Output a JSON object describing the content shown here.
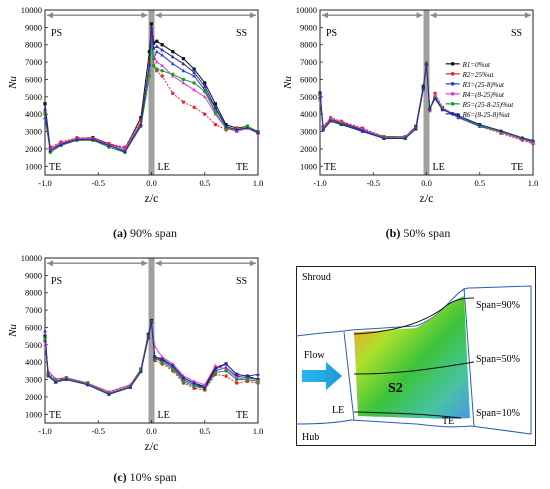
{
  "colors": {
    "R1": "#111111",
    "R2": "#e8232a",
    "R3": "#2b3de0",
    "R4": "#e23ad6",
    "R5": "#1c9a2a",
    "R6": "#2a2a9a",
    "arrow": "#888888",
    "le_band": "#a0a0a0"
  },
  "chart_data": [
    {
      "id": "a",
      "type": "line",
      "caption_tag": "(a)",
      "caption_text": "90% span",
      "xlabel": "z/c",
      "ylabel": "Nu",
      "xlim": [
        -1.0,
        1.0
      ],
      "ylim": [
        500,
        10000
      ],
      "xticks": [
        "-1.0",
        "-0.5",
        "0.0",
        "0.5",
        "1.0"
      ],
      "yticks": [
        "1000",
        "2000",
        "3000",
        "4000",
        "5000",
        "6000",
        "7000",
        "8000",
        "9000",
        "10000"
      ],
      "region_labels": {
        "left_top": "PS",
        "right_top": "SS",
        "bottom_left": "TE",
        "bottom_mid": "LE",
        "bottom_right": "TE"
      },
      "legend": false,
      "series": [
        {
          "key": "R1",
          "x": [
            -1.0,
            -0.95,
            -0.85,
            -0.7,
            -0.55,
            -0.4,
            -0.25,
            -0.1,
            -0.02,
            0.0,
            0.02,
            0.05,
            0.1,
            0.2,
            0.3,
            0.4,
            0.5,
            0.6,
            0.7,
            0.8,
            0.9,
            1.0
          ],
          "y": [
            4600,
            2000,
            2300,
            2600,
            2650,
            2300,
            2000,
            3800,
            7600,
            9200,
            8100,
            8200,
            8000,
            7600,
            7200,
            6600,
            5800,
            4600,
            3400,
            3200,
            3300,
            3000
          ]
        },
        {
          "key": "R2",
          "x": [
            -1.0,
            -0.95,
            -0.85,
            -0.7,
            -0.55,
            -0.4,
            -0.25,
            -0.1,
            -0.02,
            0.0,
            0.02,
            0.05,
            0.1,
            0.2,
            0.3,
            0.4,
            0.5,
            0.6,
            0.7,
            0.8,
            0.9,
            1.0
          ],
          "y": [
            4000,
            2100,
            2400,
            2650,
            2600,
            2300,
            2100,
            3600,
            7000,
            8600,
            6800,
            6500,
            6200,
            5200,
            4700,
            4400,
            4000,
            3400,
            3100,
            3200,
            3300,
            2900
          ]
        },
        {
          "key": "R3",
          "x": [
            -1.0,
            -0.95,
            -0.85,
            -0.7,
            -0.55,
            -0.4,
            -0.25,
            -0.1,
            -0.02,
            0.0,
            0.02,
            0.05,
            0.1,
            0.2,
            0.3,
            0.4,
            0.5,
            0.6,
            0.7,
            0.8,
            0.9,
            1.0
          ],
          "y": [
            3800,
            1900,
            2300,
            2500,
            2500,
            2200,
            1900,
            3400,
            6800,
            8800,
            7200,
            7600,
            7400,
            6900,
            6500,
            6200,
            5400,
            4300,
            3300,
            3100,
            3200,
            3000
          ]
        },
        {
          "key": "R4",
          "x": [
            -1.0,
            -0.95,
            -0.85,
            -0.7,
            -0.55,
            -0.4,
            -0.25,
            -0.1,
            -0.02,
            0.0,
            0.02,
            0.05,
            0.1,
            0.2,
            0.3,
            0.4,
            0.5,
            0.6,
            0.7,
            0.8,
            0.9,
            1.0
          ],
          "y": [
            4200,
            2000,
            2350,
            2600,
            2600,
            2250,
            2000,
            3500,
            6600,
            8400,
            7400,
            7000,
            6800,
            6200,
            5800,
            5400,
            5000,
            4000,
            3200,
            3000,
            3200,
            2900
          ]
        },
        {
          "key": "R5",
          "x": [
            -1.0,
            -0.95,
            -0.85,
            -0.7,
            -0.55,
            -0.4,
            -0.25,
            -0.1,
            -0.02,
            0.0,
            0.02,
            0.05,
            0.1,
            0.2,
            0.3,
            0.4,
            0.5,
            0.6,
            0.7,
            0.8,
            0.9,
            1.0
          ],
          "y": [
            4100,
            1800,
            2200,
            2500,
            2500,
            2100,
            1800,
            3300,
            6200,
            8300,
            6800,
            6600,
            6500,
            6300,
            6000,
            5800,
            5300,
            4100,
            3200,
            3100,
            3300,
            3000
          ]
        },
        {
          "key": "R6",
          "x": [
            -1.0,
            -0.95,
            -0.85,
            -0.7,
            -0.55,
            -0.4,
            -0.25,
            -0.1,
            -0.02,
            0.0,
            0.02,
            0.05,
            0.1,
            0.2,
            0.3,
            0.4,
            0.5,
            0.6,
            0.7,
            0.8,
            0.9,
            1.0
          ],
          "y": [
            4300,
            1900,
            2250,
            2550,
            2550,
            2200,
            1850,
            3400,
            6900,
            9000,
            7800,
            7900,
            7700,
            7300,
            6900,
            6400,
            5600,
            4400,
            3300,
            3100,
            3200,
            2950
          ]
        }
      ]
    },
    {
      "id": "b",
      "type": "line",
      "caption_tag": "(b)",
      "caption_text": "50% span",
      "xlabel": "z/c",
      "ylabel": "Nu",
      "xlim": [
        -1.0,
        1.0
      ],
      "ylim": [
        500,
        10000
      ],
      "xticks": [
        "-1.0",
        "-0.5",
        "0.0",
        "0.5",
        "1.0"
      ],
      "yticks": [
        "1000",
        "2000",
        "3000",
        "4000",
        "5000",
        "6000",
        "7000",
        "8000",
        "9000",
        "10000"
      ],
      "region_labels": {
        "left_top": "PS",
        "right_top": "SS",
        "bottom_left": "TE",
        "bottom_mid": "LE",
        "bottom_right": "TE"
      },
      "legend": true,
      "series": [
        {
          "key": "R1",
          "x": [
            -1.0,
            -0.97,
            -0.9,
            -0.8,
            -0.6,
            -0.4,
            -0.2,
            -0.1,
            -0.03,
            0.0,
            0.03,
            0.08,
            0.15,
            0.3,
            0.5,
            0.7,
            0.9,
            1.0
          ],
          "y": [
            5200,
            3200,
            3700,
            3500,
            3100,
            2700,
            2700,
            3300,
            5600,
            6900,
            4300,
            5000,
            4300,
            3900,
            3400,
            3000,
            2600,
            2400
          ]
        },
        {
          "key": "R2",
          "x": [
            -1.0,
            -0.97,
            -0.9,
            -0.8,
            -0.6,
            -0.4,
            -0.2,
            -0.1,
            -0.03,
            0.0,
            0.03,
            0.08,
            0.15,
            0.3,
            0.5,
            0.7,
            0.9,
            1.0
          ],
          "y": [
            4900,
            3300,
            3800,
            3600,
            3200,
            2700,
            2700,
            3200,
            5400,
            6800,
            4200,
            5200,
            4400,
            3800,
            3300,
            2900,
            2500,
            2300
          ]
        },
        {
          "key": "R3",
          "x": [
            -1.0,
            -0.97,
            -0.9,
            -0.8,
            -0.6,
            -0.4,
            -0.2,
            -0.1,
            -0.03,
            0.0,
            0.03,
            0.08,
            0.15,
            0.3,
            0.5,
            0.7,
            0.9,
            1.0
          ],
          "y": [
            5000,
            3100,
            3600,
            3400,
            3000,
            2600,
            2650,
            3200,
            5500,
            6900,
            4300,
            4900,
            4300,
            3800,
            3300,
            3000,
            2600,
            2400
          ]
        },
        {
          "key": "R4",
          "x": [
            -1.0,
            -0.97,
            -0.9,
            -0.8,
            -0.6,
            -0.4,
            -0.2,
            -0.1,
            -0.03,
            0.0,
            0.03,
            0.08,
            0.15,
            0.3,
            0.5,
            0.7,
            0.9,
            1.0
          ],
          "y": [
            4800,
            3250,
            3750,
            3550,
            3150,
            2650,
            2700,
            3250,
            5500,
            6850,
            4250,
            5100,
            4350,
            3850,
            3350,
            2950,
            2550,
            2350
          ]
        },
        {
          "key": "R5",
          "x": [
            -1.0,
            -0.97,
            -0.9,
            -0.8,
            -0.6,
            -0.4,
            -0.2,
            -0.1,
            -0.03,
            0.0,
            0.03,
            0.08,
            0.15,
            0.3,
            0.5,
            0.7,
            0.9,
            1.0
          ],
          "y": [
            5100,
            3150,
            3650,
            3450,
            3050,
            2650,
            2650,
            3150,
            5450,
            6950,
            4350,
            4950,
            4300,
            3850,
            3350,
            3000,
            2600,
            2450
          ]
        },
        {
          "key": "R6",
          "x": [
            -1.0,
            -0.97,
            -0.9,
            -0.8,
            -0.6,
            -0.4,
            -0.2,
            -0.1,
            -0.03,
            0.0,
            0.03,
            0.08,
            0.15,
            0.3,
            0.5,
            0.7,
            0.9,
            1.0
          ],
          "y": [
            5300,
            3100,
            3600,
            3400,
            3050,
            2600,
            2600,
            3150,
            5500,
            6900,
            4300,
            4900,
            4250,
            3900,
            3400,
            3050,
            2650,
            2500
          ]
        }
      ]
    },
    {
      "id": "c",
      "type": "line",
      "caption_tag": "(c)",
      "caption_text": "10% span",
      "xlabel": "z/c",
      "ylabel": "Nu",
      "xlim": [
        -1.0,
        1.0
      ],
      "ylim": [
        500,
        10000
      ],
      "xticks": [
        "-1.0",
        "-0.5",
        "0.0",
        "0.5",
        "1.0"
      ],
      "yticks": [
        "1000",
        "2000",
        "3000",
        "4000",
        "5000",
        "6000",
        "7000",
        "8000",
        "9000",
        "10000"
      ],
      "region_labels": {
        "left_top": "PS",
        "right_top": "SS",
        "bottom_left": "TE",
        "bottom_mid": "LE",
        "bottom_right": "TE"
      },
      "legend": false,
      "series": [
        {
          "key": "R1",
          "x": [
            -1.0,
            -0.97,
            -0.9,
            -0.8,
            -0.6,
            -0.4,
            -0.2,
            -0.1,
            -0.03,
            0.0,
            0.03,
            0.1,
            0.2,
            0.3,
            0.4,
            0.5,
            0.6,
            0.7,
            0.8,
            0.9,
            1.0
          ],
          "y": [
            5500,
            3300,
            2900,
            3100,
            2800,
            2200,
            2600,
            3600,
            5600,
            6400,
            4300,
            4200,
            3800,
            3100,
            2800,
            2600,
            3700,
            3900,
            3300,
            3200,
            3000
          ]
        },
        {
          "key": "R2",
          "x": [
            -1.0,
            -0.97,
            -0.9,
            -0.8,
            -0.6,
            -0.4,
            -0.2,
            -0.1,
            -0.03,
            0.0,
            0.03,
            0.1,
            0.2,
            0.3,
            0.4,
            0.5,
            0.6,
            0.7,
            0.8,
            0.9,
            1.0
          ],
          "y": [
            5200,
            3400,
            3000,
            3100,
            2750,
            2250,
            2650,
            3550,
            5500,
            6300,
            4100,
            3900,
            3500,
            2800,
            2500,
            2400,
            3300,
            3200,
            2800,
            2900,
            2800
          ]
        },
        {
          "key": "R3",
          "x": [
            -1.0,
            -0.97,
            -0.9,
            -0.8,
            -0.6,
            -0.4,
            -0.2,
            -0.1,
            -0.03,
            0.0,
            0.03,
            0.1,
            0.2,
            0.3,
            0.4,
            0.5,
            0.6,
            0.7,
            0.8,
            0.9,
            1.0
          ],
          "y": [
            5300,
            3200,
            2850,
            3050,
            2700,
            2150,
            2550,
            3500,
            5400,
            6300,
            4200,
            4100,
            3700,
            3000,
            2700,
            2500,
            3500,
            3700,
            3200,
            3100,
            3000
          ]
        },
        {
          "key": "R4",
          "x": [
            -1.0,
            -0.97,
            -0.9,
            -0.8,
            -0.6,
            -0.4,
            -0.2,
            -0.1,
            -0.03,
            0.0,
            0.03,
            0.1,
            0.2,
            0.3,
            0.4,
            0.5,
            0.6,
            0.7,
            0.8,
            0.9,
            1.0
          ],
          "y": [
            5000,
            3500,
            3050,
            3100,
            2800,
            2300,
            2700,
            3600,
            5500,
            6350,
            4900,
            4300,
            3900,
            3200,
            2900,
            2700,
            3800,
            3600,
            3100,
            3000,
            2900
          ]
        },
        {
          "key": "R5",
          "x": [
            -1.0,
            -0.97,
            -0.9,
            -0.8,
            -0.6,
            -0.4,
            -0.2,
            -0.1,
            -0.03,
            0.0,
            0.03,
            0.1,
            0.2,
            0.3,
            0.4,
            0.5,
            0.6,
            0.7,
            0.8,
            0.9,
            1.0
          ],
          "y": [
            5400,
            3300,
            2900,
            3050,
            2750,
            2200,
            2600,
            3550,
            5450,
            6300,
            4250,
            4000,
            3600,
            2900,
            2600,
            2500,
            3400,
            3500,
            3000,
            3000,
            2900
          ]
        },
        {
          "key": "R6",
          "x": [
            -1.0,
            -0.97,
            -0.9,
            -0.8,
            -0.6,
            -0.4,
            -0.2,
            -0.1,
            -0.03,
            0.0,
            0.03,
            0.1,
            0.2,
            0.3,
            0.4,
            0.5,
            0.6,
            0.7,
            0.8,
            0.9,
            1.0
          ],
          "y": [
            5800,
            3200,
            2850,
            3000,
            2700,
            2150,
            2550,
            3450,
            5400,
            6300,
            4300,
            4150,
            3800,
            3100,
            2800,
            2500,
            3600,
            3900,
            3300,
            3200,
            3300
          ]
        }
      ]
    }
  ],
  "legend_entries": [
    {
      "key": "R1",
      "label": "R1=0%ut"
    },
    {
      "key": "R2",
      "label": "R2=25%ut"
    },
    {
      "key": "R3",
      "label": "R3=(25-8)%ut"
    },
    {
      "key": "R4",
      "label": "R4=(8-25)%ut"
    },
    {
      "key": "R5",
      "label": "R5=(25-8-25)%ut"
    },
    {
      "key": "R6",
      "label": "R6=(8-25-8)%ut"
    }
  ],
  "diagram": {
    "shroud": "Shroud",
    "hub": "Hub",
    "flow": "Flow",
    "surface": "S2",
    "le": "LE",
    "te": "TE",
    "span90": "Span=90%",
    "span50": "Span=50%",
    "span10": "Span=10%"
  }
}
